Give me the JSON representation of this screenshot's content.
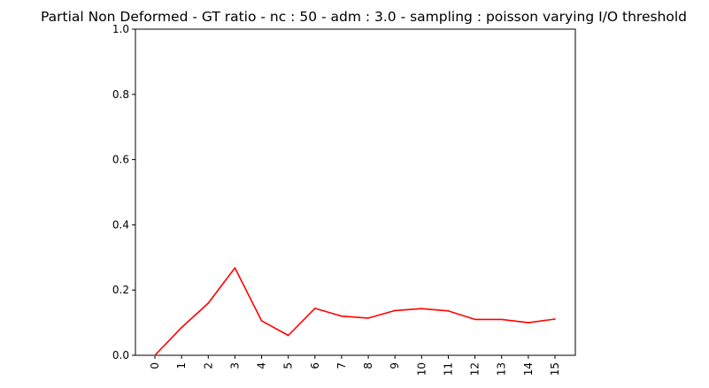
{
  "chart_data": {
    "type": "line",
    "title": "Partial Non Deformed - GT ratio - nc : 50 - adm : 3.0 - sampling : poisson varying I/O threshold",
    "xlabel": "",
    "ylabel": "",
    "categories": [
      "0",
      "1",
      "2",
      "3",
      "4",
      "5",
      "6",
      "7",
      "8",
      "9",
      "10",
      "11",
      "12",
      "13",
      "14",
      "15"
    ],
    "series": [
      {
        "color": "#ff0000",
        "values": [
          0.0,
          0.085,
          0.16,
          0.268,
          0.106,
          0.061,
          0.144,
          0.12,
          0.114,
          0.137,
          0.143,
          0.136,
          0.11,
          0.11,
          0.1,
          0.111
        ]
      }
    ],
    "ylim": [
      0,
      1
    ],
    "yticks": [
      "0.0",
      "0.2",
      "0.4",
      "0.6",
      "0.8",
      "1.0"
    ],
    "grid": false,
    "legend": "none",
    "xtick_rotation": "vertical"
  }
}
